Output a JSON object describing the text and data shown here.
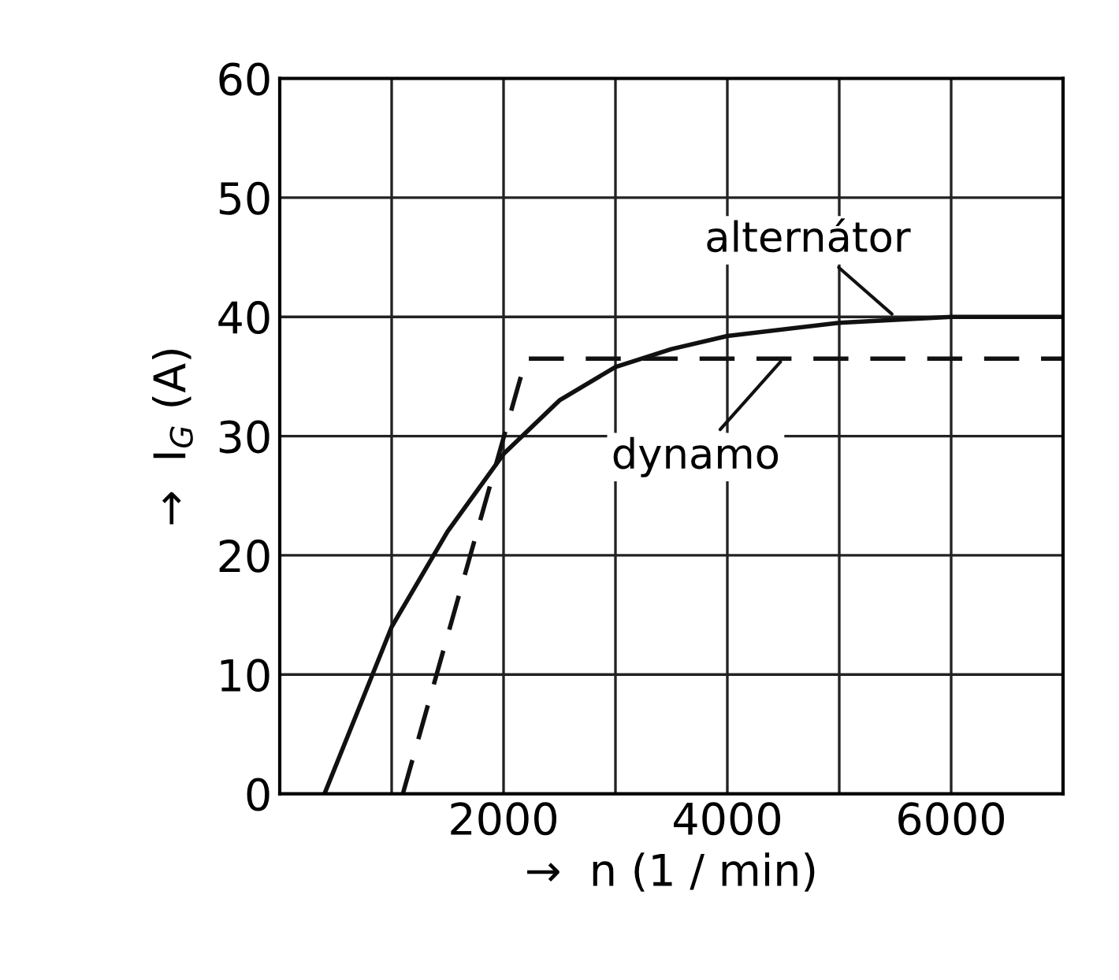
{
  "chart_data": {
    "type": "line",
    "xlabel": "→  n (1 / min)",
    "ylabel": "→  I$_{G}$ (A)",
    "xlim": [
      0,
      7000
    ],
    "ylim": [
      0,
      60
    ],
    "xticks": [
      {
        "value": 1000,
        "label": null
      },
      2000,
      {
        "value": 3000,
        "label": null
      },
      4000,
      {
        "value": 5000,
        "label": null
      },
      6000,
      {
        "value": 7000,
        "label": null
      }
    ],
    "yticks": [
      0,
      10,
      20,
      30,
      40,
      50,
      60
    ],
    "grid": true,
    "marker": "none",
    "series": [
      {
        "color": "#111111",
        "line_style": "solid",
        "x": [
          400,
          700,
          1000,
          1500,
          2000,
          2500,
          3000,
          3500,
          4000,
          5000,
          6000,
          7000
        ],
        "values": [
          0,
          7,
          14,
          22,
          28.5,
          33,
          35.8,
          37.3,
          38.4,
          39.5,
          40,
          40
        ]
      },
      {
        "color": "#111111",
        "line_style": "dashed",
        "x": [
          1100,
          2200,
          7000
        ],
        "values": [
          0,
          36.5,
          36.5
        ]
      }
    ],
    "annotations": [
      {
        "text": "alternátor",
        "x": 5500,
        "y": 40
      },
      {
        "text": "dynamo",
        "x": 4500,
        "y": 36.5
      }
    ]
  }
}
